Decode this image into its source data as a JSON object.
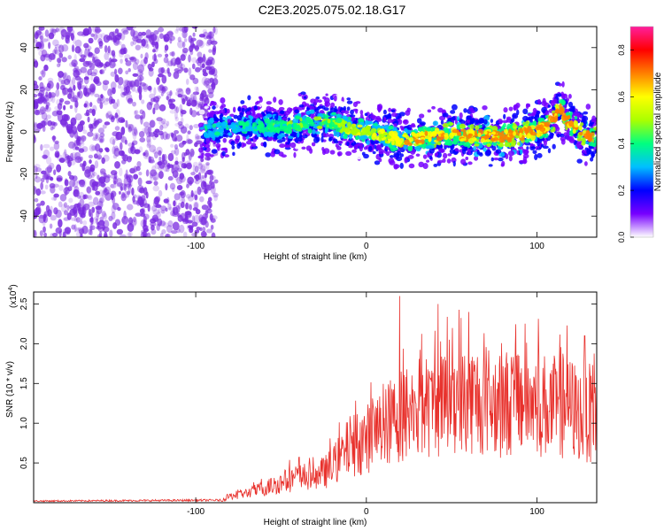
{
  "title": "C2E3.2025.075.02.18.G17",
  "colors": {
    "snr_line": "#e8312c",
    "scatter_base": "#7a2be0",
    "ridge_core": "#ff2a00",
    "axis": "#000000"
  },
  "colorbar": {
    "label": "Normalized spectral amplitude",
    "ticks": [
      "0.0",
      "0.2",
      "0.4",
      "0.6",
      "0.8"
    ],
    "tick_values": [
      0.0,
      0.2,
      0.4,
      0.6,
      0.8
    ],
    "range": [
      0.0,
      0.9
    ],
    "colormap": [
      "#ffffff",
      "#7700ff",
      "#0000ff",
      "#00bfff",
      "#00ff80",
      "#aaff00",
      "#ffff00",
      "#ff8000",
      "#ff0000",
      "#ff1f9e"
    ]
  },
  "chart_data": [
    {
      "type": "heatmap",
      "xlabel": "Height of straight line (km)",
      "ylabel": "Frequency (Hz)",
      "xlim": [
        -195,
        135
      ],
      "ylim": [
        -50,
        50
      ],
      "xticks": [
        -100,
        0,
        100
      ],
      "xtick_labels": [
        "-100",
        "0",
        "100"
      ],
      "yticks": [
        -40,
        -20,
        0,
        20,
        40
      ],
      "ytick_labels": [
        "-40",
        "-20",
        "0",
        "20",
        "40"
      ],
      "noise_region_x": [
        -195,
        -88
      ],
      "ridge": {
        "x": [
          -97,
          -80,
          -60,
          -45,
          -35,
          -20,
          -10,
          0,
          10,
          20,
          30,
          40,
          50,
          60,
          70,
          80,
          90,
          100,
          105,
          110,
          113,
          118,
          125,
          130,
          135
        ],
        "y": [
          0,
          2,
          3,
          2,
          5,
          4,
          2,
          0,
          -2,
          -4,
          -3,
          -2,
          -1,
          -2,
          -2,
          -2,
          -1,
          0,
          2,
          6,
          12,
          6,
          0,
          -2,
          -3
        ]
      },
      "grid": false
    },
    {
      "type": "line",
      "xlabel": "Height of straight line (km)",
      "ylabel": "SNR (10 * v/v)",
      "y_multiplier": "(x10",
      "y_multiplier_exp": "4",
      "y_multiplier_close": ")",
      "xlim": [
        -195,
        135
      ],
      "ylim": [
        0,
        2.65
      ],
      "xticks": [
        -100,
        0,
        100
      ],
      "xtick_labels": [
        "-100",
        "0",
        "100"
      ],
      "yticks": [
        0.5,
        1.0,
        1.5,
        2.0,
        2.5
      ],
      "ytick_labels": [
        "0.5",
        "1.0",
        "1.5",
        "2.0",
        "2.5"
      ],
      "series_envelope": {
        "x": [
          -195,
          -85,
          -80,
          -70,
          -60,
          -50,
          -40,
          -30,
          -20,
          -10,
          0,
          10,
          20,
          30,
          40,
          50,
          60,
          70,
          80,
          90,
          100,
          110,
          120,
          125,
          135
        ],
        "y": [
          0.02,
          0.03,
          0.08,
          0.12,
          0.18,
          0.25,
          0.32,
          0.3,
          0.45,
          0.7,
          0.8,
          0.95,
          1.1,
          1.2,
          1.2,
          1.3,
          1.3,
          1.3,
          1.25,
          1.3,
          1.25,
          1.2,
          1.2,
          1.1,
          1.15
        ]
      },
      "peaks": [
        {
          "x": 19.5,
          "y": 2.6
        },
        {
          "x": 42,
          "y": 2.5
        },
        {
          "x": 60,
          "y": 2.4
        },
        {
          "x": 128,
          "y": 2.1
        }
      ],
      "grid": false
    }
  ]
}
